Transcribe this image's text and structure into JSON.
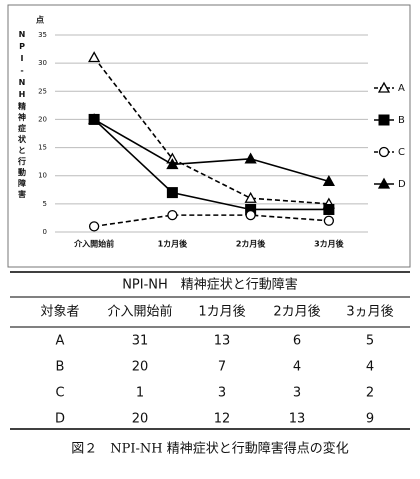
{
  "chart_data": {
    "type": "line",
    "y_label": "NPI-NH精神症状と行動障害",
    "y_unit": "点",
    "categories": [
      "介入開始前",
      "1カ月後",
      "2カ月後",
      "3カ月後"
    ],
    "series": [
      {
        "name": "A",
        "color": "#000000",
        "dash": true,
        "marker": "triangle-open",
        "values": [
          31,
          13,
          6,
          5
        ]
      },
      {
        "name": "B",
        "color": "#000000",
        "dash": false,
        "marker": "square",
        "values": [
          20,
          7,
          4,
          4
        ]
      },
      {
        "name": "C",
        "color": "#000000",
        "dash": true,
        "marker": "circle-open",
        "values": [
          1,
          3,
          3,
          2
        ]
      },
      {
        "name": "D",
        "color": "#000000",
        "dash": false,
        "marker": "triangle",
        "values": [
          20,
          12,
          13,
          9
        ]
      }
    ],
    "ylim": [
      0,
      35
    ],
    "yticks": [
      0,
      5,
      10,
      15,
      20,
      25,
      30,
      35
    ],
    "grid": true,
    "legend": "right"
  },
  "table": {
    "title": "NPI-NH　精神症状と行動障害",
    "header": [
      "対象者",
      "介入開始前",
      "1カ月後",
      "2カ月後",
      "3ヵ月後"
    ],
    "rows": [
      [
        "A",
        31,
        13,
        6,
        5
      ],
      [
        "B",
        20,
        7,
        4,
        4
      ],
      [
        "C",
        1,
        3,
        3,
        2
      ],
      [
        "D",
        20,
        12,
        13,
        9
      ]
    ]
  },
  "caption": "図２　NPI-NH 精神症状と行動障害得点の変化"
}
